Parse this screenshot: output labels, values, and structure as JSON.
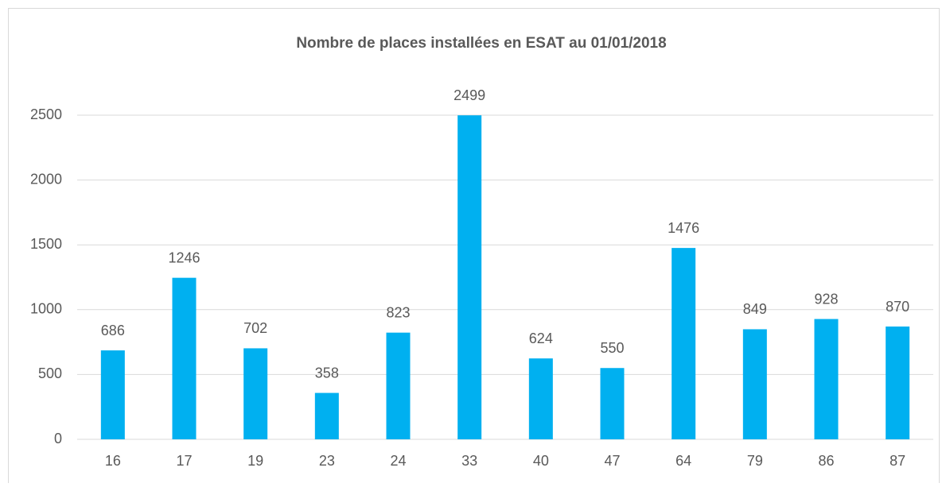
{
  "chart_data": {
    "type": "bar",
    "title": "Nombre de places installées en ESAT au 01/01/2018",
    "categories": [
      "16",
      "17",
      "19",
      "23",
      "24",
      "33",
      "40",
      "47",
      "64",
      "79",
      "86",
      "87"
    ],
    "values": [
      686,
      1246,
      702,
      358,
      823,
      2499,
      624,
      550,
      1476,
      849,
      928,
      870
    ],
    "color": "#00b0f0",
    "ylim": [
      0,
      2500
    ],
    "yticks": [
      0,
      500,
      1000,
      1500,
      2000,
      2500
    ],
    "grid": true
  }
}
